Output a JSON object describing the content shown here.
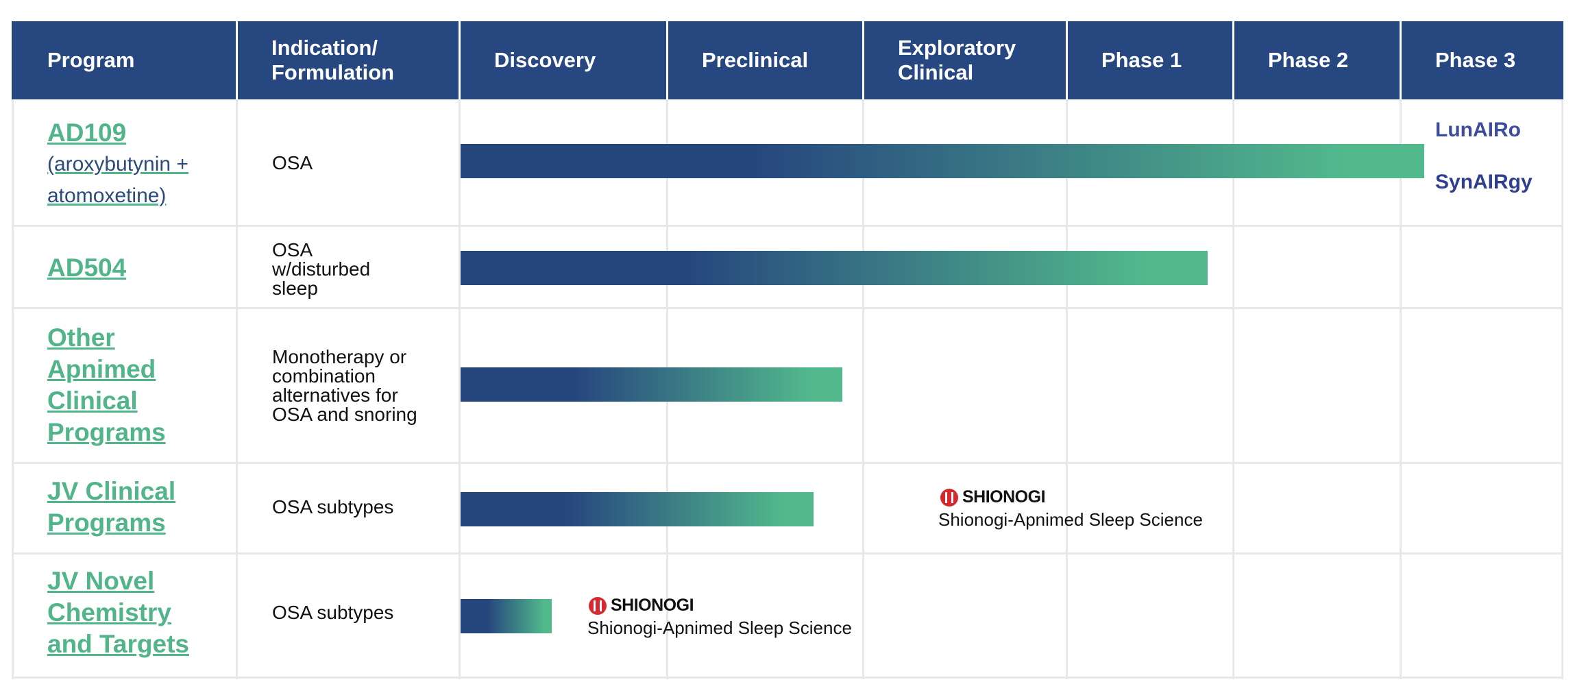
{
  "header": {
    "program": "Program",
    "indication_line1": "Indication/",
    "indication_line2": "Formulation",
    "discovery": "Discovery",
    "preclinical": "Preclinical",
    "exploratory_line1": "Exploratory",
    "exploratory_line2": "Clinical",
    "phase1": "Phase 1",
    "phase2": "Phase 2",
    "phase3": "Phase 3"
  },
  "rows": [
    {
      "program": "AD109",
      "program_sub_line1": "(aroxybutynin +",
      "program_sub_line2": "atomoxetine)",
      "indication": [
        "OSA"
      ]
    },
    {
      "program": "AD504",
      "indication": [
        "OSA",
        "w/disturbed",
        "sleep"
      ]
    },
    {
      "program_lines": [
        "Other",
        "Apnimed",
        "Clinical",
        "Programs"
      ],
      "indication": [
        "Monotherapy or",
        "combination",
        "alternatives for",
        "OSA and snoring"
      ]
    },
    {
      "program_lines": [
        "JV Clinical",
        "Programs"
      ],
      "indication": [
        "OSA subtypes"
      ],
      "partner_logo": "SHIONOGI",
      "partner_text": "Shionogi-Apnimed Sleep Science"
    },
    {
      "program_lines": [
        "JV Novel",
        "Chemistry",
        "and Targets"
      ],
      "indication": [
        "OSA subtypes"
      ],
      "partner_logo": "SHIONOGI",
      "partner_text": "Shionogi-Apnimed Sleep Science"
    }
  ],
  "brands": {
    "lunairo": "LunAIRo",
    "synairgy": "SynAIRgy"
  },
  "colors": {
    "header": "#274780",
    "bar_start": "#26467e",
    "bar_end": "#52b98c",
    "program": "#52b48a",
    "sub": "#2d4a7d"
  },
  "chart_data": {
    "type": "bar",
    "orientation": "horizontal",
    "stages": [
      "Discovery",
      "Preclinical",
      "Exploratory Clinical",
      "Phase 1",
      "Phase 2",
      "Phase 3"
    ],
    "categories": [
      "AD109",
      "AD504",
      "Other Apnimed Clinical Programs",
      "JV Clinical Programs",
      "JV Novel Chemistry and Targets"
    ],
    "values": [
      5.15,
      3.85,
      1.9,
      1.75,
      0.45
    ],
    "xlim": [
      0,
      6
    ]
  }
}
